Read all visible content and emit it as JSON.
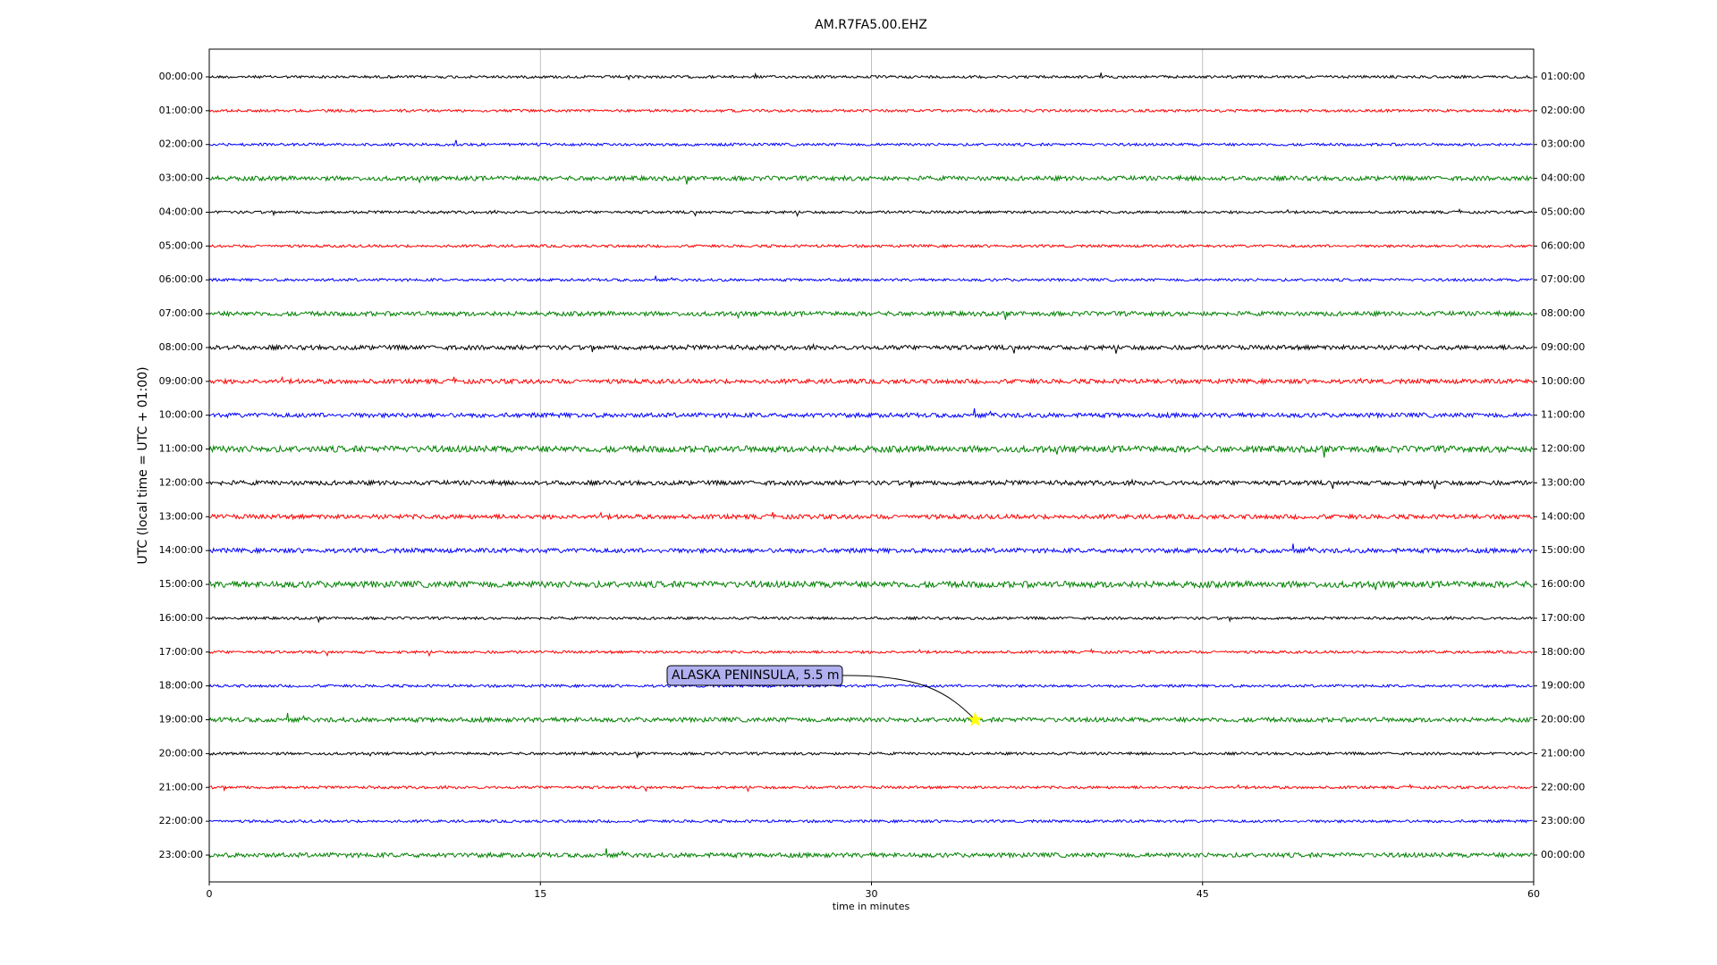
{
  "chart_data": {
    "type": "helicorder",
    "title": "AM.R7FA5.00.EHZ",
    "xlabel": "time in minutes",
    "ylabel": "UTC (local time = UTC + 01:00)",
    "xlim": [
      0,
      60
    ],
    "xticks": [
      0,
      15,
      30,
      45,
      60
    ],
    "grid": true,
    "categories": [
      "00:00:00",
      "01:00:00",
      "02:00:00",
      "03:00:00",
      "04:00:00",
      "05:00:00",
      "06:00:00",
      "07:00:00",
      "08:00:00",
      "09:00:00",
      "10:00:00",
      "11:00:00",
      "12:00:00",
      "13:00:00",
      "14:00:00",
      "15:00:00",
      "16:00:00",
      "17:00:00",
      "18:00:00",
      "19:00:00",
      "20:00:00",
      "21:00:00",
      "22:00:00",
      "23:00:00"
    ],
    "right_labels": [
      "01:00:00",
      "02:00:00",
      "03:00:00",
      "04:00:00",
      "05:00:00",
      "06:00:00",
      "07:00:00",
      "08:00:00",
      "09:00:00",
      "10:00:00",
      "11:00:00",
      "12:00:00",
      "13:00:00",
      "14:00:00",
      "15:00:00",
      "16:00:00",
      "17:00:00",
      "18:00:00",
      "19:00:00",
      "20:00:00",
      "21:00:00",
      "22:00:00",
      "23:00:00",
      "00:00:00"
    ],
    "colors": [
      "#000000",
      "#ff0000",
      "#0000ff",
      "#008000"
    ],
    "events": [
      {
        "label": "ALASKA PENINSULA, 5.5 m",
        "x": 34.7,
        "y": "19:00:00"
      }
    ]
  }
}
